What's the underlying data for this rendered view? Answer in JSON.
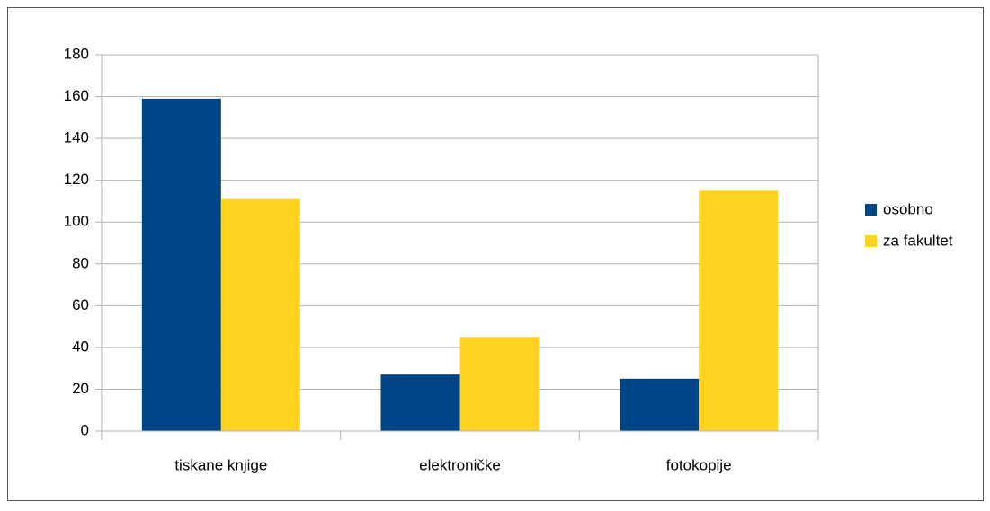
{
  "chart_data": {
    "type": "bar",
    "categories": [
      "tiskane knjige",
      "elektroničke",
      "fotokopije"
    ],
    "series": [
      {
        "name": "osobno",
        "color": "#004586",
        "values": [
          159,
          27,
          25
        ]
      },
      {
        "name": "za fakultet",
        "color": "#ffd320",
        "values": [
          111,
          45,
          115
        ]
      }
    ],
    "ylim": [
      0,
      180
    ],
    "yticks": [
      0,
      20,
      40,
      60,
      80,
      100,
      120,
      140,
      160,
      180
    ],
    "grid": true,
    "legend": "right"
  }
}
